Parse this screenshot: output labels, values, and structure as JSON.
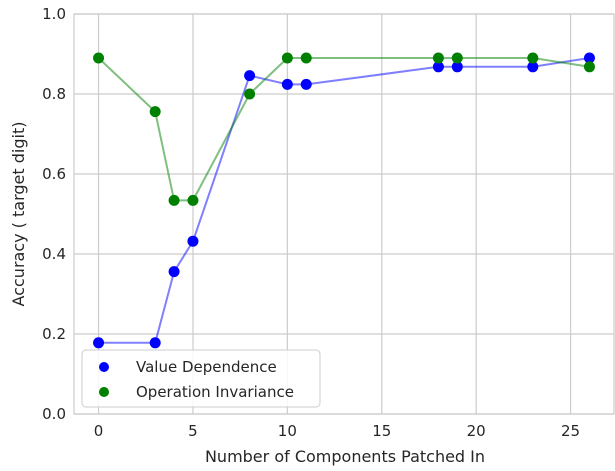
{
  "chart_data": {
    "type": "scatter",
    "title": "",
    "xlabel": "Number of Components Patched In",
    "ylabel": "Accuracy ( target digit)",
    "xlim": [
      -1.3,
      27.3
    ],
    "ylim": [
      0.0,
      1.0
    ],
    "x_ticks": [
      0,
      5,
      10,
      15,
      20,
      25
    ],
    "y_ticks": [
      0.0,
      0.2,
      0.4,
      0.6,
      0.8,
      1.0
    ],
    "grid": true,
    "legend_position": "lower-left",
    "series": [
      {
        "name": "Value Dependence",
        "color": "#0000ff",
        "x": [
          0,
          3,
          4,
          5,
          8,
          10,
          11,
          18,
          19,
          23,
          26
        ],
        "y": [
          0.178,
          0.178,
          0.356,
          0.432,
          0.846,
          0.824,
          0.824,
          0.868,
          0.868,
          0.868,
          0.89
        ]
      },
      {
        "name": "Operation Invariance",
        "color": "#008000",
        "x": [
          0,
          3,
          4,
          5,
          8,
          10,
          11,
          18,
          19,
          23,
          26
        ],
        "y": [
          0.89,
          0.756,
          0.534,
          0.534,
          0.8,
          0.89,
          0.89,
          0.89,
          0.89,
          0.89,
          0.868
        ]
      }
    ]
  }
}
